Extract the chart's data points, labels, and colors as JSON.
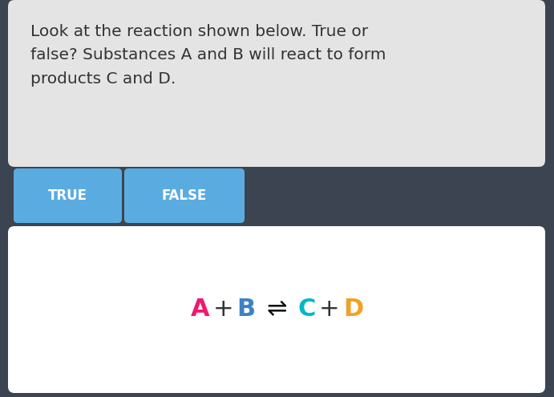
{
  "bg_color": "#3d4451",
  "question_box_color": "#e4e4e4",
  "question_text": "Look at the reaction shown below. True or\nfalse? Substances A and B will react to form\nproducts C and D.",
  "question_text_color": "#333333",
  "question_fontsize": 14.5,
  "button_color": "#5aace0",
  "button_true_label": "TRUE",
  "button_false_label": "FALSE",
  "button_text_color": "#ffffff",
  "button_fontsize": 12,
  "reaction_box_color": "#ffffff",
  "A_color": "#f0196e",
  "B_color": "#3b82c4",
  "C_color": "#00b8c8",
  "D_color": "#f5a020",
  "plus_color": "#333333",
  "arrow_color": "#111111",
  "reaction_fontsize": 22,
  "equation_parts": [
    "A",
    "+",
    "B",
    "⇌",
    "C",
    "+",
    "D"
  ],
  "equation_colors": [
    "#f0196e",
    "#333333",
    "#3b82c4",
    "#111111",
    "#00b8c8",
    "#333333",
    "#f5a020"
  ],
  "equation_bold": [
    true,
    false,
    true,
    false,
    true,
    false,
    true
  ]
}
